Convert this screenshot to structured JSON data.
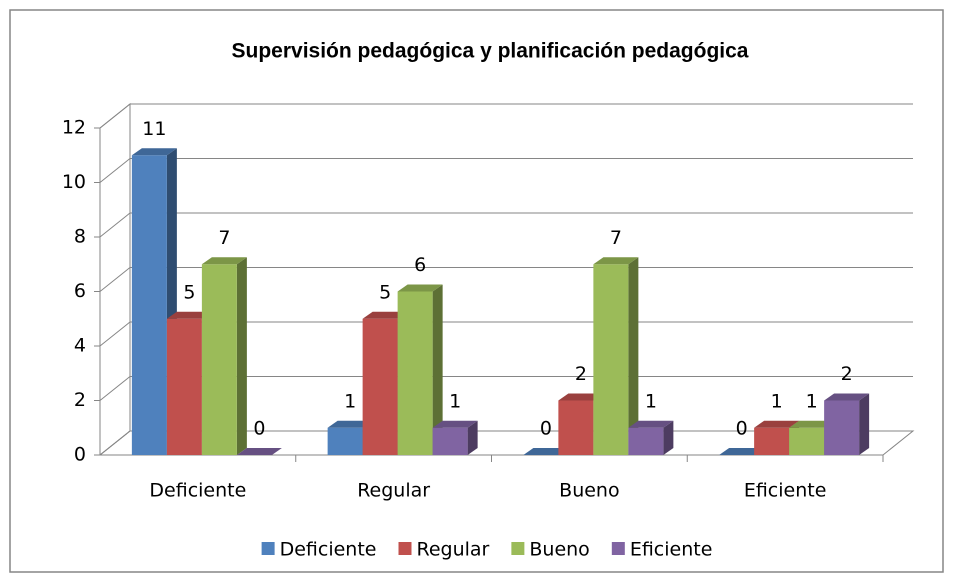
{
  "chart_data": {
    "type": "bar3d",
    "title": "Supervisión pedagógica y planificación pedagógica",
    "categories": [
      "Deficiente",
      "Regular",
      "Bueno",
      "Eficiente"
    ],
    "series": [
      {
        "name": "Deficiente",
        "color": "#4f81bd",
        "values": [
          11,
          1,
          0,
          0
        ]
      },
      {
        "name": "Regular",
        "color": "#c0504d",
        "values": [
          5,
          5,
          2,
          1
        ]
      },
      {
        "name": "Bueno",
        "color": "#9bbb59",
        "values": [
          7,
          6,
          7,
          1
        ]
      },
      {
        "name": "Eficiente",
        "color": "#8064a2",
        "values": [
          0,
          1,
          1,
          2
        ]
      }
    ],
    "ylim": [
      0,
      12
    ],
    "yticks": [
      0,
      2,
      4,
      6,
      8,
      10,
      12
    ],
    "grid": true,
    "legend": "bottom"
  }
}
